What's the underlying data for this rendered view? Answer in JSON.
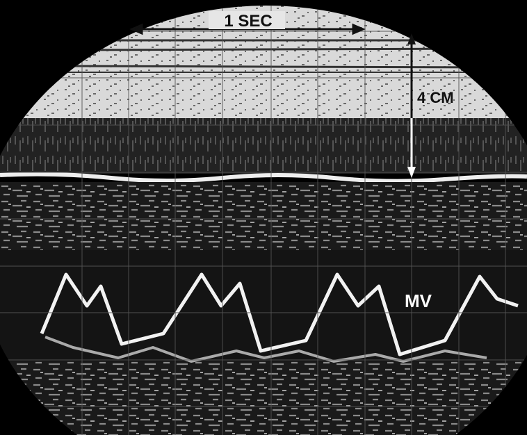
{
  "labels": {
    "time_scale": "1 SEC",
    "depth_scale": "4 CM",
    "structure": "MV"
  }
}
